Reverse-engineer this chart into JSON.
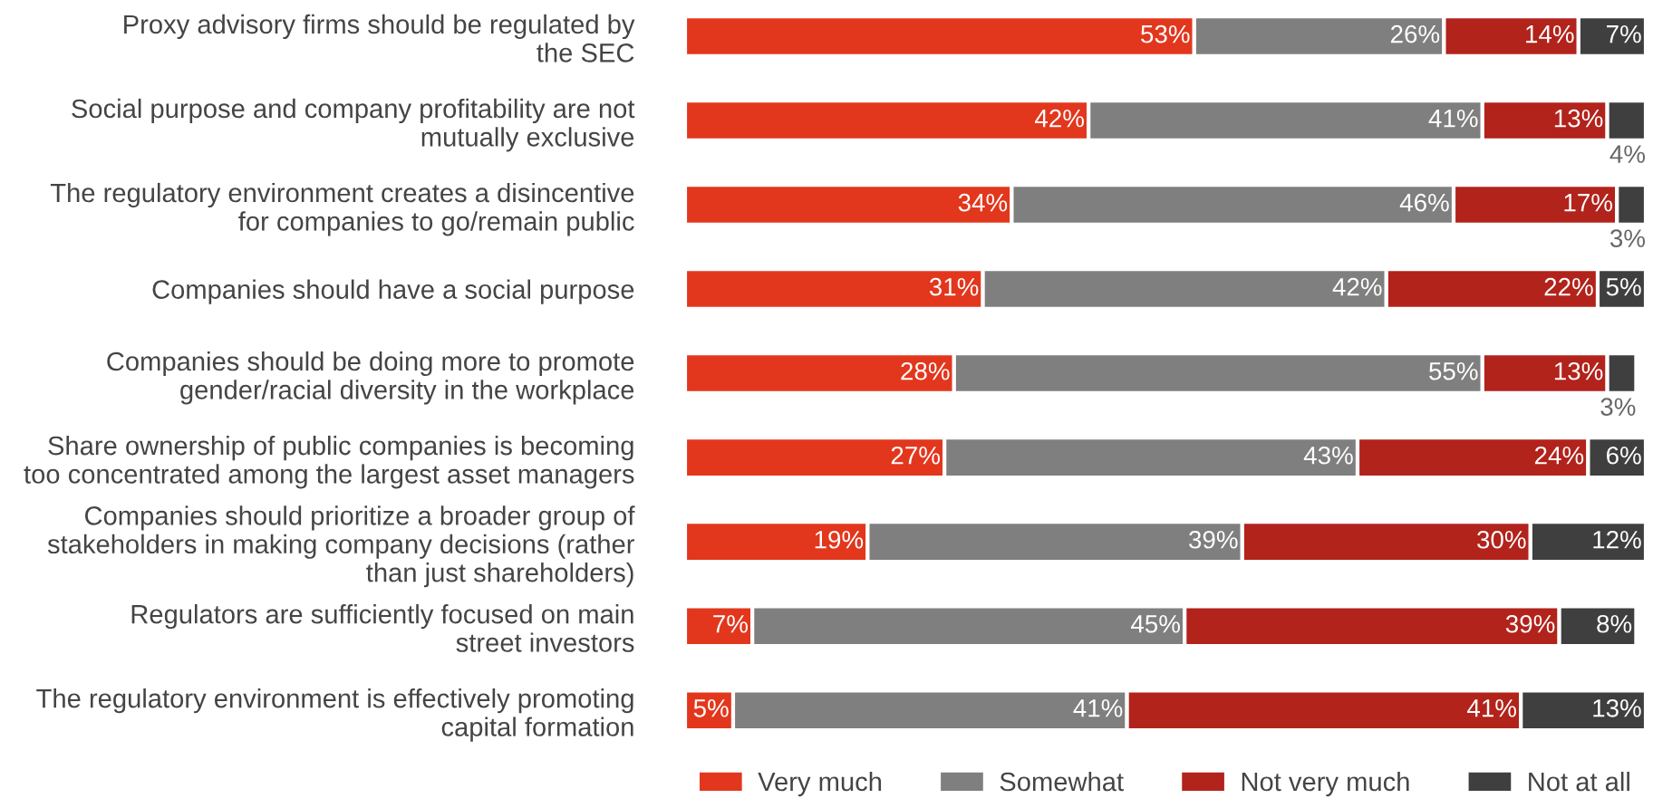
{
  "chart_data": {
    "type": "bar",
    "orientation": "horizontal",
    "stacked": true,
    "legend": "bottom",
    "categories": [
      "Proxy advisory firms should be regulated by\nthe SEC",
      "Social purpose and company profitability are not\nmutually exclusive",
      "The regulatory environment creates a disincentive\nfor companies to go/remain public",
      "Companies should have a social purpose",
      "Companies should be doing more to promote\ngender/racial diversity in the workplace",
      "Share ownership of public companies is becoming\ntoo concentrated among the largest asset managers",
      "Companies should prioritize a broader group of\nstakeholders in making company decisions (rather\nthan just shareholders)",
      "Regulators are sufficiently focused on main\nstreet investors",
      "The regulatory environment is effectively promoting\ncapital formation"
    ],
    "series": [
      {
        "name": "Very much",
        "color": "#e2371d",
        "values": [
          53,
          42,
          34,
          31,
          28,
          27,
          19,
          7,
          5
        ],
        "value_labels": [
          "53%",
          "42%",
          "34%",
          "31%",
          "28%",
          "27%",
          "19%",
          "7%",
          "5%"
        ]
      },
      {
        "name": "Somewhat",
        "color": "#7f7f7f",
        "values": [
          26,
          41,
          46,
          42,
          55,
          43,
          39,
          45,
          41
        ],
        "value_labels": [
          "26%",
          "41%",
          "46%",
          "42%",
          "55%",
          "43%",
          "39%",
          "45%",
          "41%"
        ]
      },
      {
        "name": "Not very much",
        "color": "#b2231b",
        "values": [
          14,
          13,
          17,
          22,
          13,
          24,
          30,
          39,
          41
        ],
        "value_labels": [
          "14%",
          "13%",
          "17%",
          "22%",
          "13%",
          "24%",
          "30%",
          "39%",
          "41%"
        ]
      },
      {
        "name": "Not at all",
        "color": "#3f3f3f",
        "values": [
          7,
          4,
          3,
          5,
          3,
          6,
          12,
          8,
          13
        ],
        "value_labels": [
          "7%",
          "4%",
          "3%",
          "5%",
          "3%",
          "6%",
          "12%",
          "8%",
          "13%"
        ]
      }
    ]
  }
}
